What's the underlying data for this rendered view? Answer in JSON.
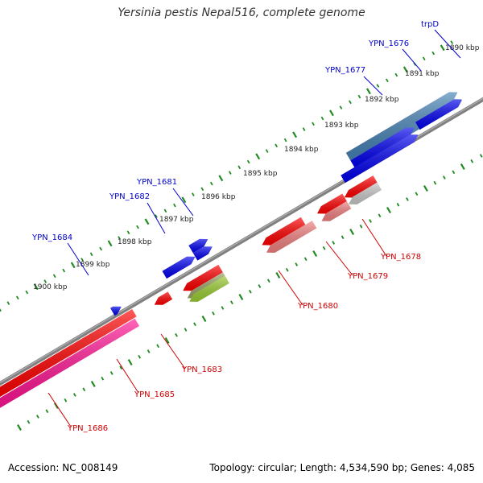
{
  "title": "Yersinia pestis Nepal516, complete genome",
  "footer": {
    "accession": "Accession: NC_008149",
    "stats": "Topology: circular; Length: 4,534,590 bp; Genes: 4,085"
  },
  "kbp_ticks": [
    "1890 kbp",
    "1891 kbp",
    "1892 kbp",
    "1893 kbp",
    "1894 kbp",
    "1895 kbp",
    "1896 kbp",
    "1897 kbp",
    "1898 kbp",
    "1899 kbp",
    "1900 kbp"
  ],
  "forward_labels": [
    "trpD",
    "YPN_1676",
    "YPN_1677",
    "YPN_1681",
    "YPN_1682",
    "YPN_1684"
  ],
  "reverse_labels": [
    "YPN_1678",
    "YPN_1679",
    "YPN_1680",
    "YPN_1683",
    "YPN_1685",
    "YPN_1686"
  ],
  "colors": {
    "forward_gene": "#0000ee",
    "forward_highlight": "#4682b4",
    "reverse_gene": "#ff0000",
    "reverse_light": "#f08080",
    "reverse_pink": "#ff1493",
    "reverse_olive": "#9aa36b",
    "reverse_lime": "#9acd32",
    "reverse_gray": "#c8c8c8",
    "backbone": "#808080",
    "tick": "#228b22",
    "forward_label": "#0000cc",
    "reverse_label": "#cc0000"
  }
}
